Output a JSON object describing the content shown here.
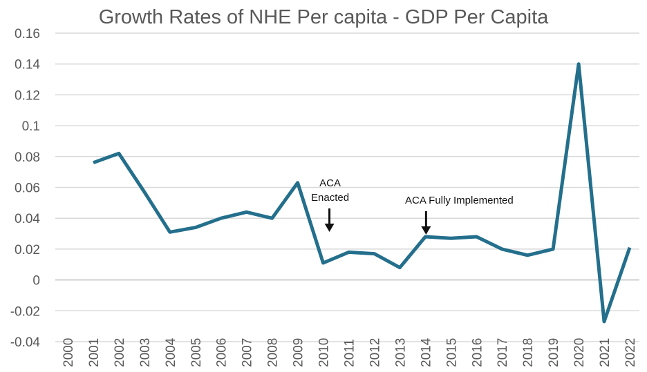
{
  "chart_data": {
    "type": "line",
    "title": "Growth Rates of NHE Per capita - GDP Per Capita",
    "xlabel": "",
    "ylabel": "",
    "ylim": [
      -0.04,
      0.16
    ],
    "yticks": [
      "-0.04",
      "-0.02",
      "0",
      "0.02",
      "0.04",
      "0.06",
      "0.08",
      "0.1",
      "0.12",
      "0.14",
      "0.16"
    ],
    "categories": [
      "2000",
      "2001",
      "2002",
      "2003",
      "2004",
      "2005",
      "2006",
      "2007",
      "2008",
      "2009",
      "2010",
      "2011",
      "2012",
      "2013",
      "2014",
      "2015",
      "2016",
      "2017",
      "2018",
      "2019",
      "2020",
      "2021",
      "2022"
    ],
    "values": [
      null,
      0.076,
      0.082,
      0.057,
      0.031,
      0.034,
      0.04,
      0.044,
      0.04,
      0.063,
      0.011,
      0.018,
      0.017,
      0.008,
      0.028,
      0.027,
      0.028,
      0.02,
      0.016,
      0.02,
      0.14,
      -0.027,
      0.021
    ],
    "grid": true,
    "line_color": "#236f8c",
    "annotations": [
      {
        "lines": [
          "ACA",
          "Enacted"
        ],
        "year": "2010"
      },
      {
        "lines": [
          "ACA Fully Implemented"
        ],
        "year": "2014"
      }
    ]
  }
}
